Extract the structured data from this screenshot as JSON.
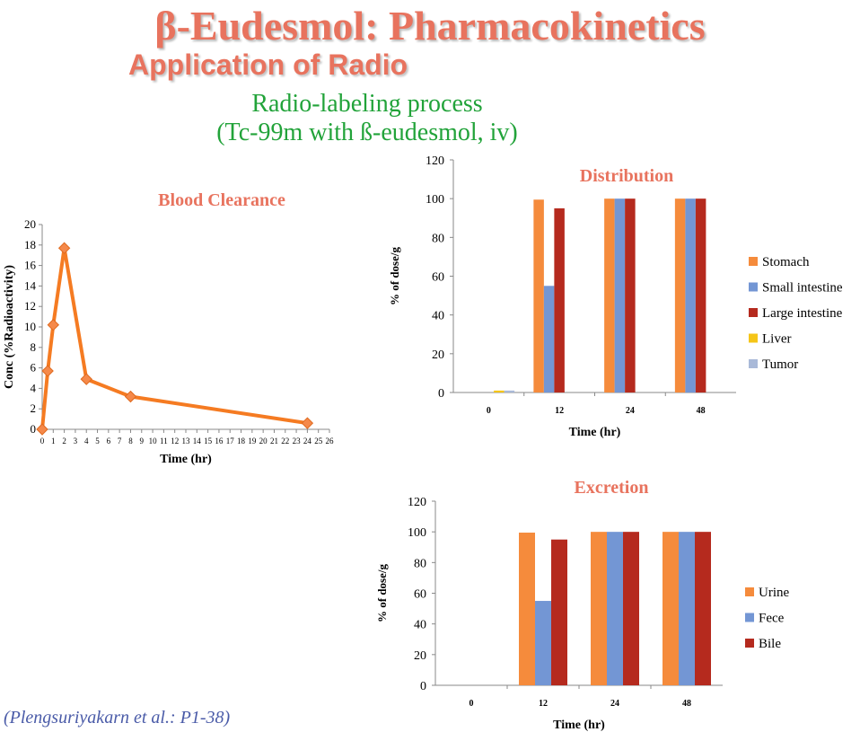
{
  "slide": {
    "title": "β-Eudesmol: Pharmacokinetics",
    "subtitle": "Application of Radio",
    "process_line1": "Radio-labeling process",
    "process_line2": "(Tc-99m with ß-eudesmol, iv)",
    "citation": "(Plengsuriyakarn et al.: P1-38)"
  },
  "colors": {
    "title": "#e8735e",
    "process": "#22a33a",
    "line_series": "#f57b22",
    "orange": "#f58b3c",
    "blue": "#7396d4",
    "darkred": "#b52a1e",
    "yellow": "#f5c518",
    "lightblue": "#a9b9d8"
  },
  "chart_data": [
    {
      "id": "blood",
      "type": "line",
      "title": "Blood Clearance",
      "xlabel": "Time (hr)",
      "ylabel": "Conc (%Radioactivity)",
      "xlim": [
        0,
        26
      ],
      "xticks": [
        "0",
        "1",
        "2",
        "3",
        "4",
        "5",
        "6",
        "7",
        "8",
        "9",
        "10",
        "11",
        "12",
        "13",
        "14",
        "15",
        "16",
        "17",
        "18",
        "19",
        "20",
        "21",
        "22",
        "23",
        "24",
        "25",
        "26"
      ],
      "ylim": [
        0,
        20
      ],
      "yticks": [
        "0",
        "2",
        "4",
        "6",
        "8",
        "10",
        "12",
        "14",
        "16",
        "18",
        "20"
      ],
      "series": [
        {
          "x": [
            0,
            0.5,
            1,
            2,
            4,
            8,
            24
          ],
          "y": [
            0,
            5.7,
            10.2,
            17.7,
            4.9,
            3.2,
            0.6
          ]
        }
      ],
      "grid": false
    },
    {
      "id": "distribution",
      "type": "bar",
      "title": "Distribution",
      "xlabel": "Time (hr)",
      "ylabel": "% of dose/g",
      "ylim": [
        0,
        120
      ],
      "yticks": [
        "0",
        "20",
        "40",
        "60",
        "80",
        "100",
        "120"
      ],
      "categories": [
        "0",
        "12",
        "24",
        "48"
      ],
      "series": [
        {
          "name": "Stomach",
          "color": "#f58b3c",
          "values": [
            0,
            99.5,
            100,
            100
          ]
        },
        {
          "name": "Small intestine",
          "color": "#7396d4",
          "values": [
            0,
            55,
            100,
            100
          ]
        },
        {
          "name": "Large intestine",
          "color": "#b52a1e",
          "values": [
            0,
            95,
            100,
            100
          ]
        },
        {
          "name": "Liver",
          "color": "#f5c518",
          "values": [
            1,
            0,
            0,
            0
          ]
        },
        {
          "name": "Tumor",
          "color": "#a9b9d8",
          "values": [
            1,
            0,
            0,
            0
          ]
        }
      ],
      "legend": "right",
      "grid": false
    },
    {
      "id": "excretion",
      "type": "bar",
      "title": "Excretion",
      "xlabel": "Time (hr)",
      "ylabel": "% of dose/g",
      "ylim": [
        0,
        120
      ],
      "yticks": [
        "0",
        "20",
        "40",
        "60",
        "80",
        "100",
        "120"
      ],
      "categories": [
        "0",
        "12",
        "24",
        "48"
      ],
      "series": [
        {
          "name": "Urine",
          "color": "#f58b3c",
          "values": [
            0,
            99.5,
            100,
            100
          ]
        },
        {
          "name": "Fece",
          "color": "#7396d4",
          "values": [
            0,
            55,
            100,
            100
          ]
        },
        {
          "name": "Bile",
          "color": "#b52a1e",
          "values": [
            0,
            95,
            100,
            100
          ]
        }
      ],
      "legend": "right",
      "grid": false
    }
  ]
}
